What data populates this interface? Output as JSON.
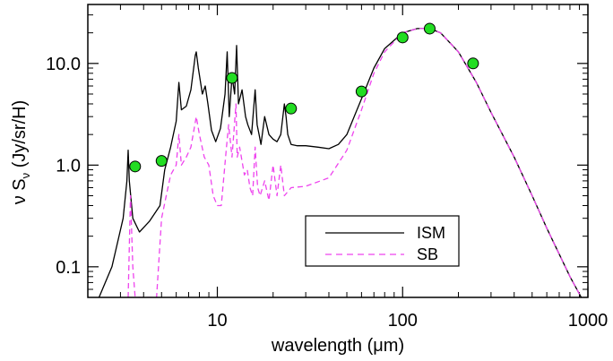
{
  "chart_data": {
    "type": "line",
    "xlabel": "wavelength (μm)",
    "ylabel_main": "ν S",
    "ylabel_sub": "ν",
    "ylabel_units": " (Jy/sr/H)",
    "x_scale": "log",
    "y_scale": "log",
    "xlim": [
      2.0,
      1000
    ],
    "ylim": [
      0.05,
      38
    ],
    "x_ticks": [
      {
        "value": 10,
        "label": "10"
      },
      {
        "value": 100,
        "label": "100"
      },
      {
        "value": 1000,
        "label": "1000"
      }
    ],
    "y_ticks": [
      {
        "value": 0.1,
        "label": "0.1"
      },
      {
        "value": 1.0,
        "label": "1.0"
      },
      {
        "value": 10.0,
        "label": "10.0"
      }
    ],
    "legend": {
      "placement": "lower-center",
      "entries": [
        "ISM",
        "SB"
      ]
    },
    "series": [
      {
        "name": "ISM",
        "color": "#000000",
        "style": "solid",
        "x": [
          2.3,
          2.7,
          3.1,
          3.25,
          3.3,
          3.35,
          3.5,
          3.8,
          4.3,
          4.9,
          5.2,
          5.6,
          6.0,
          6.2,
          6.4,
          6.8,
          7.2,
          7.6,
          7.7,
          7.9,
          8.3,
          8.6,
          8.9,
          9.3,
          9.8,
          10.4,
          11.0,
          11.3,
          11.6,
          12.0,
          12.4,
          12.7,
          13.0,
          13.6,
          14.2,
          14.6,
          15.3,
          16.0,
          16.4,
          16.8,
          17.2,
          18.0,
          19.0,
          20.0,
          21.0,
          22.0,
          23.0,
          23.5,
          24.0,
          25.0,
          27.0,
          30.0,
          35.0,
          40.0,
          45.0,
          50.0,
          60.0,
          70.0,
          80.0,
          100.0,
          120.0,
          140.0,
          160.0,
          200.0,
          250.0,
          300.0,
          400.0,
          500.0,
          600.0,
          800.0,
          950.0
        ],
        "y": [
          0.05,
          0.1,
          0.3,
          0.7,
          1.4,
          0.7,
          0.3,
          0.22,
          0.28,
          0.4,
          0.9,
          1.5,
          2.7,
          6.5,
          3.5,
          3.8,
          5.5,
          12.0,
          13.0,
          9.0,
          5.0,
          6.0,
          4.0,
          2.2,
          1.7,
          2.3,
          5.0,
          13.0,
          3.0,
          7.5,
          5.0,
          15.0,
          4.0,
          5.5,
          3.0,
          2.5,
          2.0,
          5.5,
          2.5,
          2.0,
          1.6,
          3.0,
          2.0,
          1.8,
          1.7,
          2.0,
          4.0,
          3.0,
          2.0,
          1.6,
          1.55,
          1.55,
          1.5,
          1.45,
          1.6,
          2.0,
          4.5,
          9.0,
          14.0,
          20.0,
          22.0,
          22.0,
          20.0,
          13.0,
          6.5,
          3.3,
          1.2,
          0.5,
          0.24,
          0.08,
          0.045
        ]
      },
      {
        "name": "SB",
        "color": "#ee44ee",
        "style": "dashed",
        "x": [
          3.3,
          3.4,
          3.5,
          3.6,
          3.7,
          4.7,
          5.0,
          5.3,
          5.6,
          6.0,
          6.2,
          6.4,
          6.8,
          7.2,
          7.7,
          8.0,
          8.5,
          9.0,
          9.5,
          10.0,
          10.5,
          11.2,
          11.5,
          12.0,
          12.6,
          12.8,
          13.2,
          14.0,
          14.5,
          15.0,
          15.5,
          16.0,
          16.5,
          17.0,
          18.0,
          19.0,
          20.0,
          21.0,
          22.0,
          23.0,
          25.0,
          30.0,
          40.0,
          50.0,
          60.0,
          70.0,
          80.0,
          100.0,
          120.0,
          140.0,
          160.0,
          200.0,
          250.0,
          300.0,
          400.0,
          500.0,
          600.0,
          800.0,
          950.0
        ],
        "y": [
          0.05,
          0.5,
          0.1,
          0.05,
          0.05,
          0.05,
          0.3,
          0.5,
          0.8,
          1.0,
          2.0,
          1.0,
          1.2,
          1.5,
          3.0,
          2.0,
          1.2,
          1.0,
          0.5,
          0.4,
          0.4,
          1.5,
          2.5,
          1.2,
          4.0,
          1.2,
          1.5,
          0.8,
          0.9,
          0.6,
          0.5,
          1.5,
          0.6,
          0.5,
          0.7,
          0.45,
          1.0,
          0.5,
          1.0,
          0.5,
          0.6,
          0.62,
          0.75,
          1.4,
          3.5,
          8.0,
          13.0,
          20.0,
          22.0,
          22.0,
          20.0,
          13.0,
          6.5,
          3.3,
          1.2,
          0.5,
          0.24,
          0.08,
          0.045
        ]
      }
    ],
    "points": {
      "color": "#22dd22",
      "x": [
        3.6,
        5.0,
        12.0,
        25.0,
        60.0,
        100.0,
        140.0,
        240.0
      ],
      "y": [
        0.97,
        1.1,
        7.2,
        3.6,
        5.3,
        18.0,
        22.0,
        10.0
      ]
    }
  }
}
